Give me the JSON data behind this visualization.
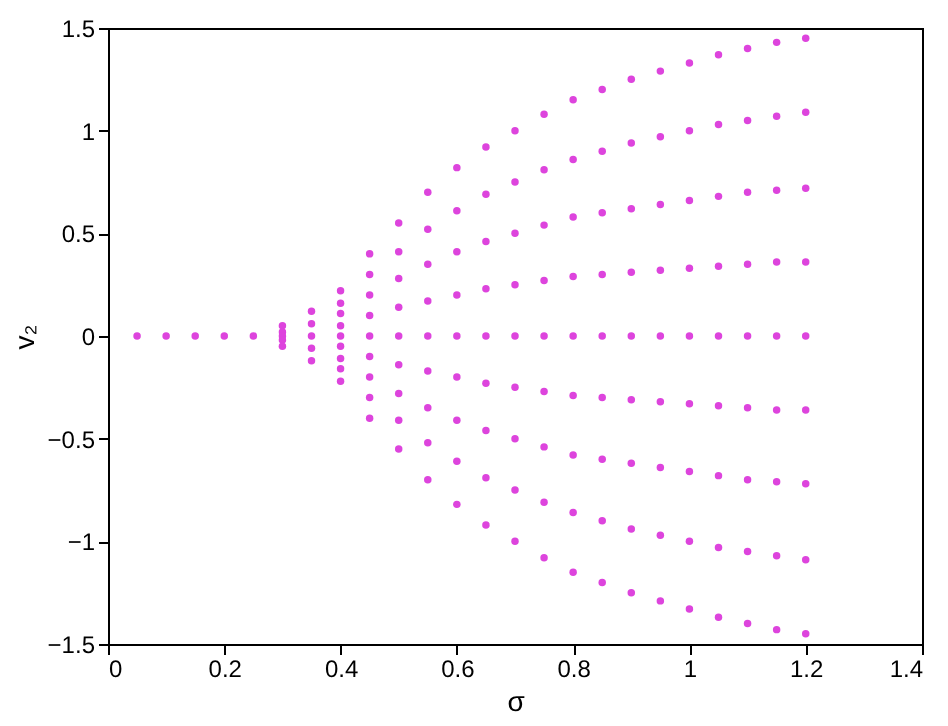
{
  "chart_data": {
    "type": "scatter",
    "xlabel": "σ",
    "ylabel": "v₂",
    "xlim": [
      0,
      1.4
    ],
    "xticks": [
      0,
      0.2,
      0.4,
      0.6,
      0.8,
      1,
      1.2,
      1.4
    ],
    "ylim": [
      -1.5,
      1.5
    ],
    "yticks": [
      -1.5,
      -1,
      -0.5,
      0,
      0.5,
      1,
      1.5
    ],
    "grid": false,
    "legend": false,
    "marker": "circle",
    "series": [
      {
        "color": "#dd44dd",
        "x": [
          0.05,
          0.1,
          0.15,
          0.2,
          0.25,
          0.3,
          0.3,
          0.3,
          0.3,
          0.3,
          0.35,
          0.35,
          0.35,
          0.35,
          0.35,
          0.4,
          0.4,
          0.4,
          0.4,
          0.4,
          0.4,
          0.4,
          0.4,
          0.4,
          0.45,
          0.45,
          0.45,
          0.45,
          0.45,
          0.45,
          0.45,
          0.45,
          0.45,
          0.5,
          0.5,
          0.5,
          0.5,
          0.5,
          0.5,
          0.5,
          0.5,
          0.5,
          0.55,
          0.55,
          0.55,
          0.55,
          0.55,
          0.55,
          0.55,
          0.55,
          0.55,
          0.6,
          0.6,
          0.6,
          0.6,
          0.6,
          0.6,
          0.6,
          0.6,
          0.6,
          0.65,
          0.65,
          0.65,
          0.65,
          0.65,
          0.65,
          0.65,
          0.65,
          0.65,
          0.7,
          0.7,
          0.7,
          0.7,
          0.7,
          0.7,
          0.7,
          0.7,
          0.7,
          0.75,
          0.75,
          0.75,
          0.75,
          0.75,
          0.75,
          0.75,
          0.75,
          0.75,
          0.8,
          0.8,
          0.8,
          0.8,
          0.8,
          0.8,
          0.8,
          0.8,
          0.8,
          0.85,
          0.85,
          0.85,
          0.85,
          0.85,
          0.85,
          0.85,
          0.85,
          0.85,
          0.9,
          0.9,
          0.9,
          0.9,
          0.9,
          0.9,
          0.9,
          0.9,
          0.9,
          0.95,
          0.95,
          0.95,
          0.95,
          0.95,
          0.95,
          0.95,
          0.95,
          0.95,
          1,
          1,
          1,
          1,
          1,
          1,
          1,
          1,
          1,
          1.05,
          1.05,
          1.05,
          1.05,
          1.05,
          1.05,
          1.05,
          1.05,
          1.05,
          1.1,
          1.1,
          1.1,
          1.1,
          1.1,
          1.1,
          1.1,
          1.1,
          1.1,
          1.15,
          1.15,
          1.15,
          1.15,
          1.15,
          1.15,
          1.15,
          1.15,
          1.15,
          1.2,
          1.2,
          1.2,
          1.2,
          1.2,
          1.2,
          1.2,
          1.2,
          1.2
        ],
        "values": [
          0,
          0,
          0,
          0,
          0,
          0.05,
          0.02,
          0,
          -0.02,
          -0.05,
          0.12,
          0.06,
          0,
          -0.06,
          -0.12,
          0.22,
          0.16,
          0.11,
          0.05,
          0,
          -0.05,
          -0.11,
          -0.16,
          -0.22,
          0.4,
          0.3,
          0.2,
          0.1,
          0,
          -0.1,
          -0.2,
          -0.3,
          -0.4,
          0.55,
          0.41,
          0.28,
          0.14,
          0,
          -0.14,
          -0.28,
          -0.41,
          -0.55,
          0.7,
          0.52,
          0.35,
          0.17,
          0,
          -0.17,
          -0.35,
          -0.52,
          -0.7,
          0.82,
          0.61,
          0.41,
          0.2,
          0,
          -0.2,
          -0.41,
          -0.61,
          -0.82,
          0.92,
          0.69,
          0.46,
          0.23,
          0,
          -0.23,
          -0.46,
          -0.69,
          -0.92,
          1,
          0.75,
          0.5,
          0.25,
          0,
          -0.25,
          -0.5,
          -0.75,
          -1,
          1.08,
          0.81,
          0.54,
          0.27,
          0,
          -0.27,
          -0.54,
          -0.81,
          -1.08,
          1.15,
          0.86,
          0.58,
          0.29,
          0,
          -0.29,
          -0.58,
          -0.86,
          -1.15,
          1.2,
          0.9,
          0.6,
          0.3,
          0,
          -0.3,
          -0.6,
          -0.9,
          -1.2,
          1.25,
          0.94,
          0.62,
          0.31,
          0,
          -0.31,
          -0.62,
          -0.94,
          -1.25,
          1.29,
          0.97,
          0.64,
          0.32,
          0,
          -0.32,
          -0.64,
          -0.97,
          -1.29,
          1.33,
          1,
          0.66,
          0.33,
          0,
          -0.33,
          -0.66,
          -1,
          -1.33,
          1.37,
          1.03,
          0.68,
          0.34,
          0,
          -0.34,
          -0.68,
          -1.03,
          -1.37,
          1.4,
          1.05,
          0.7,
          0.35,
          0,
          -0.35,
          -0.7,
          -1.05,
          -1.4,
          1.43,
          1.07,
          0.71,
          0.36,
          0,
          -0.36,
          -0.71,
          -1.07,
          -1.43,
          1.45,
          1.09,
          0.72,
          0.36,
          0,
          -0.36,
          -0.72,
          -1.09,
          -1.45
        ]
      }
    ]
  }
}
